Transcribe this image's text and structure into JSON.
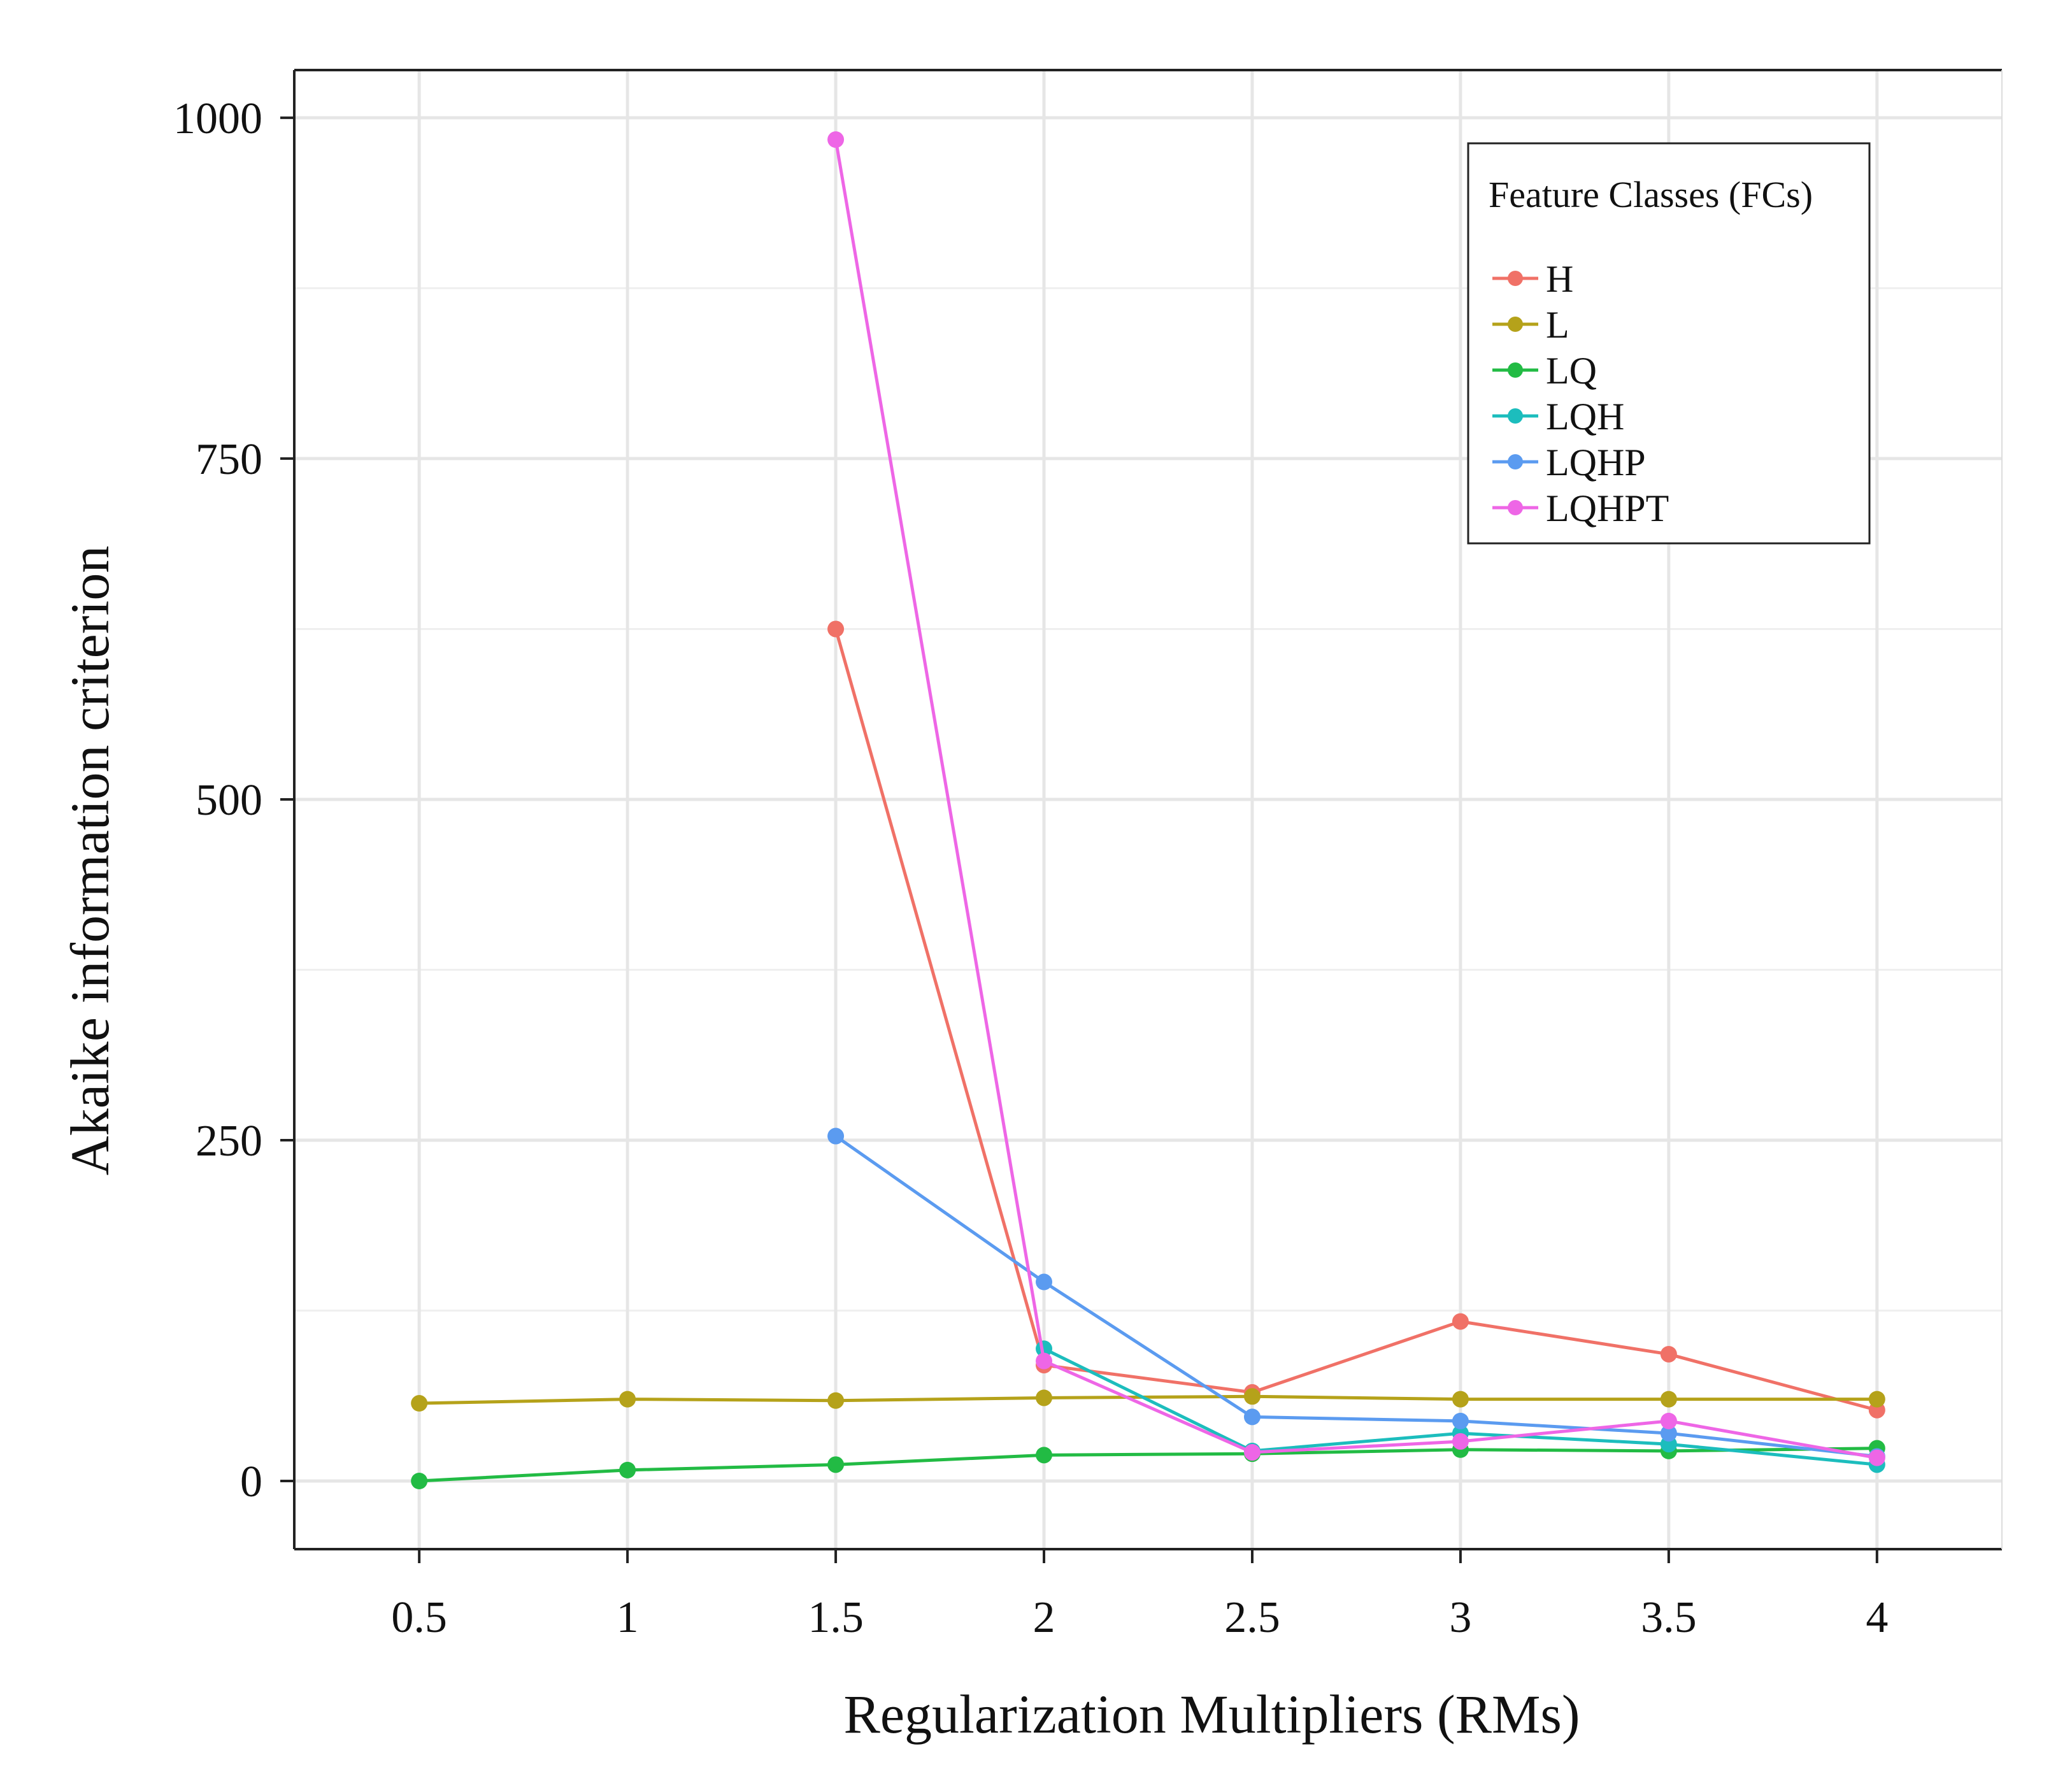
{
  "chart_data": {
    "type": "line",
    "title": "",
    "xlabel": "Regularization Multipliers (RMs)",
    "ylabel": "Akaike information criterion",
    "x": [
      0.5,
      1,
      1.5,
      2,
      2.5,
      3,
      3.5,
      4
    ],
    "x_tick_labels": [
      "0.5",
      "1",
      "1.5",
      "2",
      "2.5",
      "3",
      "3.5",
      "4"
    ],
    "y_ticks": [
      0,
      250,
      500,
      750,
      1000
    ],
    "y_tick_labels": [
      "0",
      "250",
      "500",
      "750",
      "1000"
    ],
    "xlim": [
      0.2,
      4.3
    ],
    "ylim": [
      -50,
      1035
    ],
    "grid": true,
    "legend": {
      "title": "Feature Classes (FCs)",
      "position": "top-right"
    },
    "series": [
      {
        "name": "H",
        "color": "#f07167",
        "values": [
          null,
          null,
          625,
          85,
          65,
          117,
          93,
          52
        ]
      },
      {
        "name": "L",
        "color": "#b5a21a",
        "values": [
          57,
          60,
          59,
          61,
          62,
          60,
          60,
          60
        ]
      },
      {
        "name": "LQ",
        "color": "#22bb44",
        "values": [
          0,
          8,
          12,
          19,
          20,
          23,
          22,
          24
        ]
      },
      {
        "name": "LQH",
        "color": "#1cbdbd",
        "values": [
          null,
          null,
          null,
          97,
          22,
          35,
          27,
          12
        ]
      },
      {
        "name": "LQHP",
        "color": "#5b9bf0",
        "values": [
          null,
          null,
          253,
          146,
          47,
          44,
          35,
          18
        ]
      },
      {
        "name": "LQHPT",
        "color": "#ee66e6",
        "values": [
          null,
          null,
          984,
          88,
          21,
          29,
          44,
          17
        ]
      }
    ]
  }
}
